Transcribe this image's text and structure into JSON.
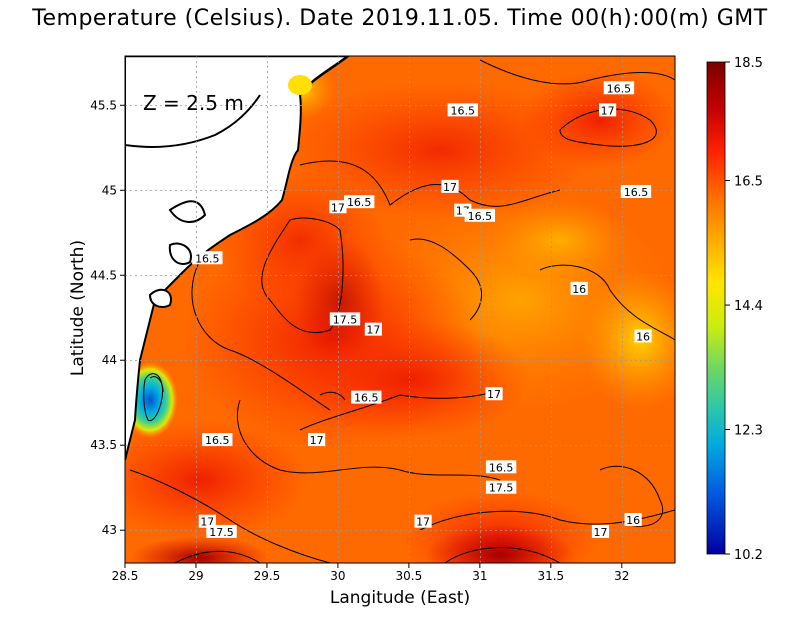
{
  "title": "Temperature (Celsius). Date 2019.11.05. Time 00(h):00(m) GMT",
  "depth_label": "Z = 2.5 m",
  "x_axis_label": "Langitude (East)",
  "y_axis_label": "Latitude (North)",
  "x_ticks": [
    "28.5",
    "29",
    "29.5",
    "30",
    "30.5",
    "31",
    "31.5",
    "32"
  ],
  "x_tick_values": [
    28.5,
    29,
    29.5,
    30,
    30.5,
    31,
    31.5,
    32
  ],
  "y_ticks": [
    "43",
    "43.5",
    "44",
    "44.5",
    "45",
    "45.5"
  ],
  "y_tick_values": [
    43,
    43.5,
    44,
    44.5,
    45,
    45.5
  ],
  "colorbar_ticks": [
    "18.5",
    "16.5",
    "14.4",
    "12.3",
    "10.2"
  ],
  "colorbar_tick_values": [
    18.5,
    16.5,
    14.4,
    12.3,
    10.2
  ],
  "contour_labels": [
    {
      "text": "16.5",
      "lon": 31.98,
      "lat": 45.6
    },
    {
      "text": "16.5",
      "lon": 30.88,
      "lat": 45.47
    },
    {
      "text": "17",
      "lon": 31.9,
      "lat": 45.47
    },
    {
      "text": "17",
      "lon": 30.79,
      "lat": 45.02
    },
    {
      "text": "16.5",
      "lon": 30.15,
      "lat": 44.93
    },
    {
      "text": "17",
      "lon": 30.0,
      "lat": 44.9
    },
    {
      "text": "17",
      "lon": 30.88,
      "lat": 44.88
    },
    {
      "text": "16.5",
      "lon": 31.0,
      "lat": 44.85
    },
    {
      "text": "16.5",
      "lon": 32.1,
      "lat": 44.99
    },
    {
      "text": "16.5",
      "lon": 29.08,
      "lat": 44.6
    },
    {
      "text": "16",
      "lon": 31.7,
      "lat": 44.42
    },
    {
      "text": "17.5",
      "lon": 30.05,
      "lat": 44.24
    },
    {
      "text": "17",
      "lon": 30.25,
      "lat": 44.18
    },
    {
      "text": "16",
      "lon": 32.15,
      "lat": 44.14
    },
    {
      "text": "16.5",
      "lon": 30.2,
      "lat": 43.78
    },
    {
      "text": "17",
      "lon": 31.1,
      "lat": 43.8
    },
    {
      "text": "16.5",
      "lon": 29.15,
      "lat": 43.53
    },
    {
      "text": "17",
      "lon": 29.85,
      "lat": 43.53
    },
    {
      "text": "16.5",
      "lon": 31.15,
      "lat": 43.37
    },
    {
      "text": "17.5",
      "lon": 31.15,
      "lat": 43.25
    },
    {
      "text": "17",
      "lon": 29.08,
      "lat": 43.05
    },
    {
      "text": "17",
      "lon": 30.6,
      "lat": 43.05
    },
    {
      "text": "16",
      "lon": 32.08,
      "lat": 43.06
    },
    {
      "text": "17.5",
      "lon": 29.18,
      "lat": 42.99
    },
    {
      "text": "17",
      "lon": 31.85,
      "lat": 42.99
    }
  ],
  "colors": {
    "colorbar_stops": [
      "#7a0000",
      "#c80000",
      "#ff2000",
      "#ff6a00",
      "#ffaa00",
      "#ffe600",
      "#d8f000",
      "#88e050",
      "#30c8a0",
      "#00a8e0",
      "#0060e0",
      "#0000a0"
    ],
    "sea_base": "#ff6a00",
    "land": "#ffffff"
  }
}
